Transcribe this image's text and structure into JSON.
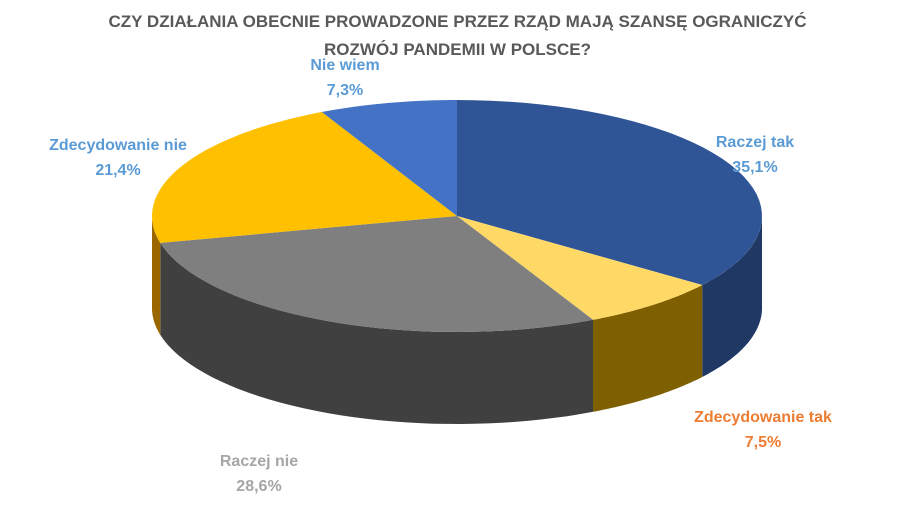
{
  "chart_data": {
    "type": "pie",
    "style": "3d",
    "title_line1": "CZY DZIAŁANIA OBECNIE PROWADZONE PRZEZ RZĄD MAJĄ SZANSĘ OGRANICZYĆ",
    "title_line2": "ROZWÓJ PANDEMII W POLSCE?",
    "slices": [
      {
        "label": "Raczej tak",
        "value": 35.1,
        "value_text": "35,1%",
        "color": "#2F5597",
        "side_color": "#1F3864",
        "label_color": "#5B9BD5"
      },
      {
        "label": "Zdecydowanie tak",
        "value": 7.5,
        "value_text": "7,5%",
        "color": "#FFD966",
        "side_color": "#7F6000",
        "label_color": "#ED7D31"
      },
      {
        "label": "Raczej nie",
        "value": 28.6,
        "value_text": "28,6%",
        "color": "#7F7F7F",
        "side_color": "#404040",
        "label_color": "#A6A6A6"
      },
      {
        "label": "Zdecydowanie nie",
        "value": 21.4,
        "value_text": "21,4%",
        "color": "#FFC000",
        "side_color": "#996600",
        "label_color": "#5B9BD5"
      },
      {
        "label": "Nie wiem",
        "value": 7.3,
        "value_text": "7,3%",
        "color": "#4472C4",
        "side_color": "#2F4F8F",
        "label_color": "#5B9BD5"
      }
    ]
  }
}
